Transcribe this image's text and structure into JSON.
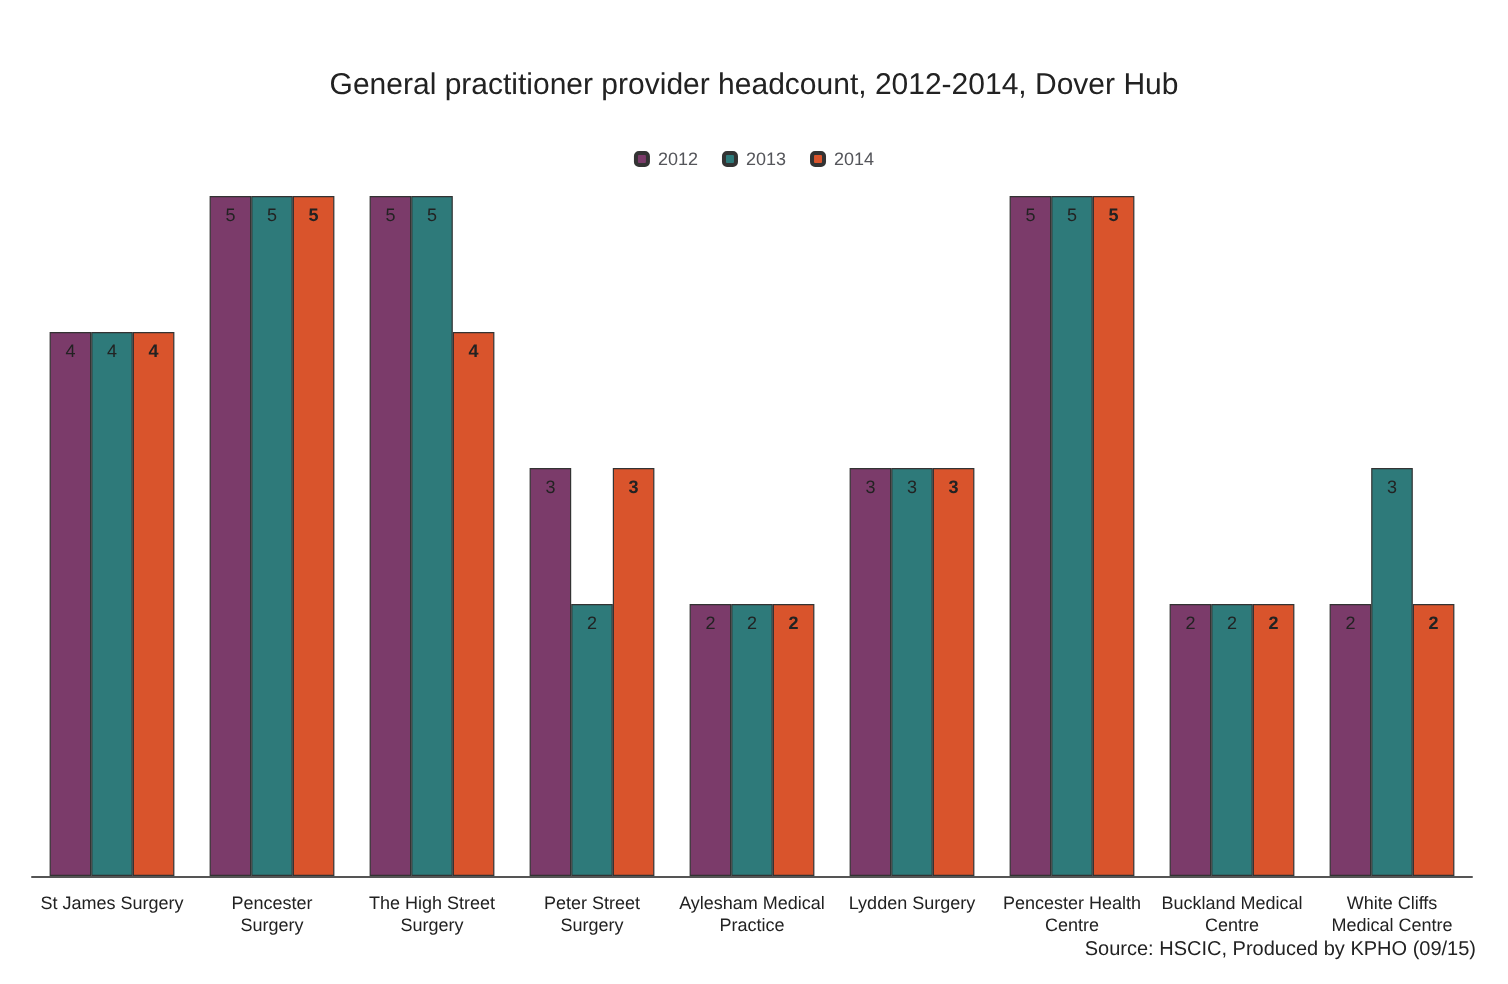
{
  "chart_data": {
    "type": "bar",
    "title": "General practitioner provider headcount, 2012-2014, Dover Hub",
    "categories": [
      "St James Surgery",
      "Pencester Surgery",
      "The High Street Surgery",
      "Peter Street Surgery",
      "Aylesham Medical Practice",
      "Lydden Surgery",
      "Pencester Health Centre",
      "Buckland Medical Centre",
      "White Cliffs Medical Centre"
    ],
    "series": [
      {
        "name": "2012",
        "color": "#7b3b6a",
        "values": [
          4,
          5,
          5,
          3,
          2,
          3,
          5,
          2,
          2
        ]
      },
      {
        "name": "2013",
        "color": "#2e7a7a",
        "values": [
          4,
          5,
          5,
          2,
          2,
          3,
          5,
          2,
          3
        ]
      },
      {
        "name": "2014",
        "color": "#d9542c",
        "values": [
          4,
          5,
          4,
          3,
          2,
          3,
          5,
          2,
          2
        ]
      }
    ],
    "data_labels": true,
    "legend": "top",
    "annotations": [
      "Source: HSCIC, Produced by KPHO (09/15)"
    ]
  }
}
